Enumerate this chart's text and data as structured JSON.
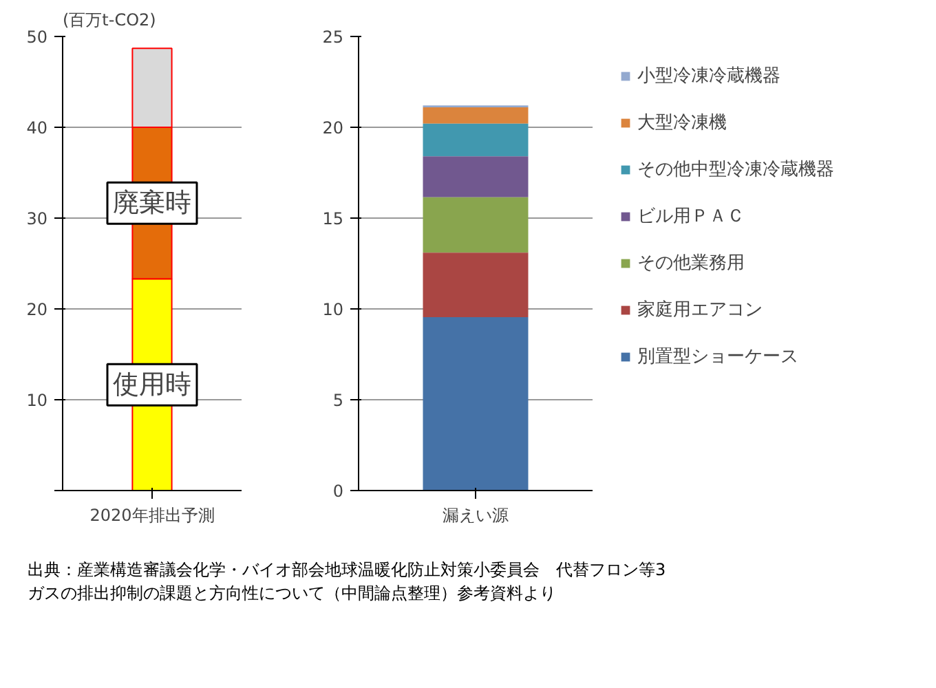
{
  "chart_data": [
    {
      "type": "bar",
      "stacked": true,
      "categories": [
        "2020年排出予測"
      ],
      "ylabel": "(百万t-CO2)",
      "ylim": [
        0,
        50
      ],
      "yticks": [
        {
          "value": 0,
          "label": null
        },
        10,
        20,
        30,
        40,
        50
      ],
      "grid": "y",
      "series": [
        {
          "color": "#ffff00",
          "values": [
            23.3
          ]
        },
        {
          "color": "#e46c0a",
          "values": [
            16.7
          ]
        },
        {
          "color": "#d9d9d9",
          "values": [
            8.7
          ]
        }
      ],
      "annotations": [
        "廃棄時",
        "使用時"
      ]
    },
    {
      "type": "bar",
      "stacked": true,
      "categories": [
        "漏えい源"
      ],
      "ylim": [
        0,
        25
      ],
      "yticks": [
        0,
        5,
        10,
        15,
        20,
        25
      ],
      "grid": "y",
      "legend": "right",
      "series": [
        {
          "name": "別置型ショーケース",
          "color": "#4572a7",
          "values": [
            9.55
          ]
        },
        {
          "name": "家庭用エアコン",
          "color": "#aa4643",
          "values": [
            3.55
          ]
        },
        {
          "name": "その他業務用",
          "color": "#89a54e",
          "values": [
            3.05
          ]
        },
        {
          "name": "ビル用ＰＡＣ",
          "color": "#71588f",
          "values": [
            2.25
          ]
        },
        {
          "name": "その他中型冷凍冷蔵機器",
          "color": "#4198af",
          "values": [
            1.8
          ]
        },
        {
          "name": "大型冷凍機",
          "color": "#db843d",
          "values": [
            0.9
          ]
        },
        {
          "name": "小型冷凍冷蔵機器",
          "color": "#93a9cf",
          "values": [
            0.1
          ]
        }
      ],
      "annotations": [
        "出典：産業構造審議会化学・バイオ部会地球温暖化防止対策小委員会　代替フロン等3\nガスの排出抑制の課題と方向性について（中間論点整理）参考資料より"
      ]
    }
  ]
}
